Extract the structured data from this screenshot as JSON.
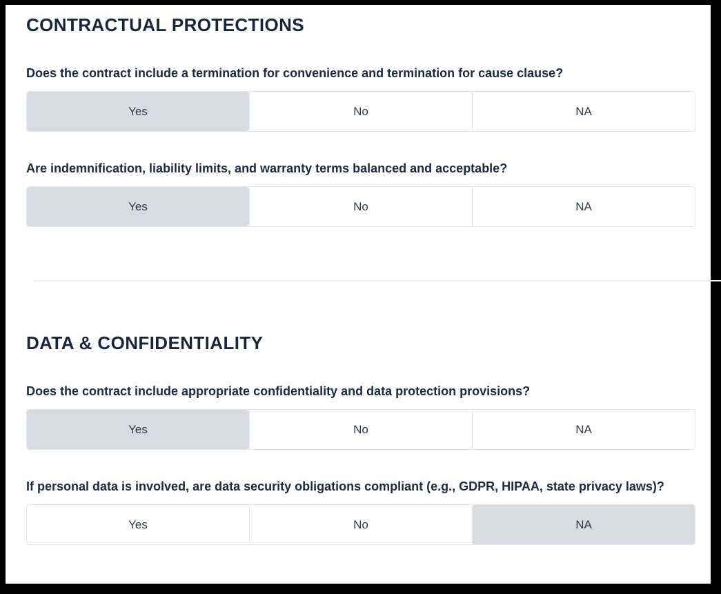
{
  "colors": {
    "frame": "#000000",
    "background": "#ffffff",
    "heading_text": "#17263c",
    "question_text": "#1b2a41",
    "option_text": "#2f3b47",
    "selected_option_bg": "#d8dbdf",
    "segment_border": "#e2e4e7",
    "divider": "#ededed"
  },
  "page": {
    "sections": [
      {
        "title": "CONTRACTUAL PROTECTIONS",
        "questions": [
          {
            "text": "Does the contract include a termination for convenience and termination for cause clause?",
            "options": [
              "Yes",
              "No",
              "NA"
            ],
            "selected": "Yes"
          },
          {
            "text": "Are indemnification, liability limits, and warranty terms balanced and acceptable?",
            "options": [
              "Yes",
              "No",
              "NA"
            ],
            "selected": "Yes"
          }
        ]
      },
      {
        "title": "DATA & CONFIDENTIALITY",
        "questions": [
          {
            "text": "Does the contract include appropriate confidentiality and data protection provisions?",
            "options": [
              "Yes",
              "No",
              "NA"
            ],
            "selected": "Yes"
          },
          {
            "text": "If personal data is involved, are data security obligations compliant (e.g., GDPR, HIPAA, state privacy laws)?",
            "options": [
              "Yes",
              "No",
              "NA"
            ],
            "selected": "NA"
          }
        ]
      }
    ]
  }
}
